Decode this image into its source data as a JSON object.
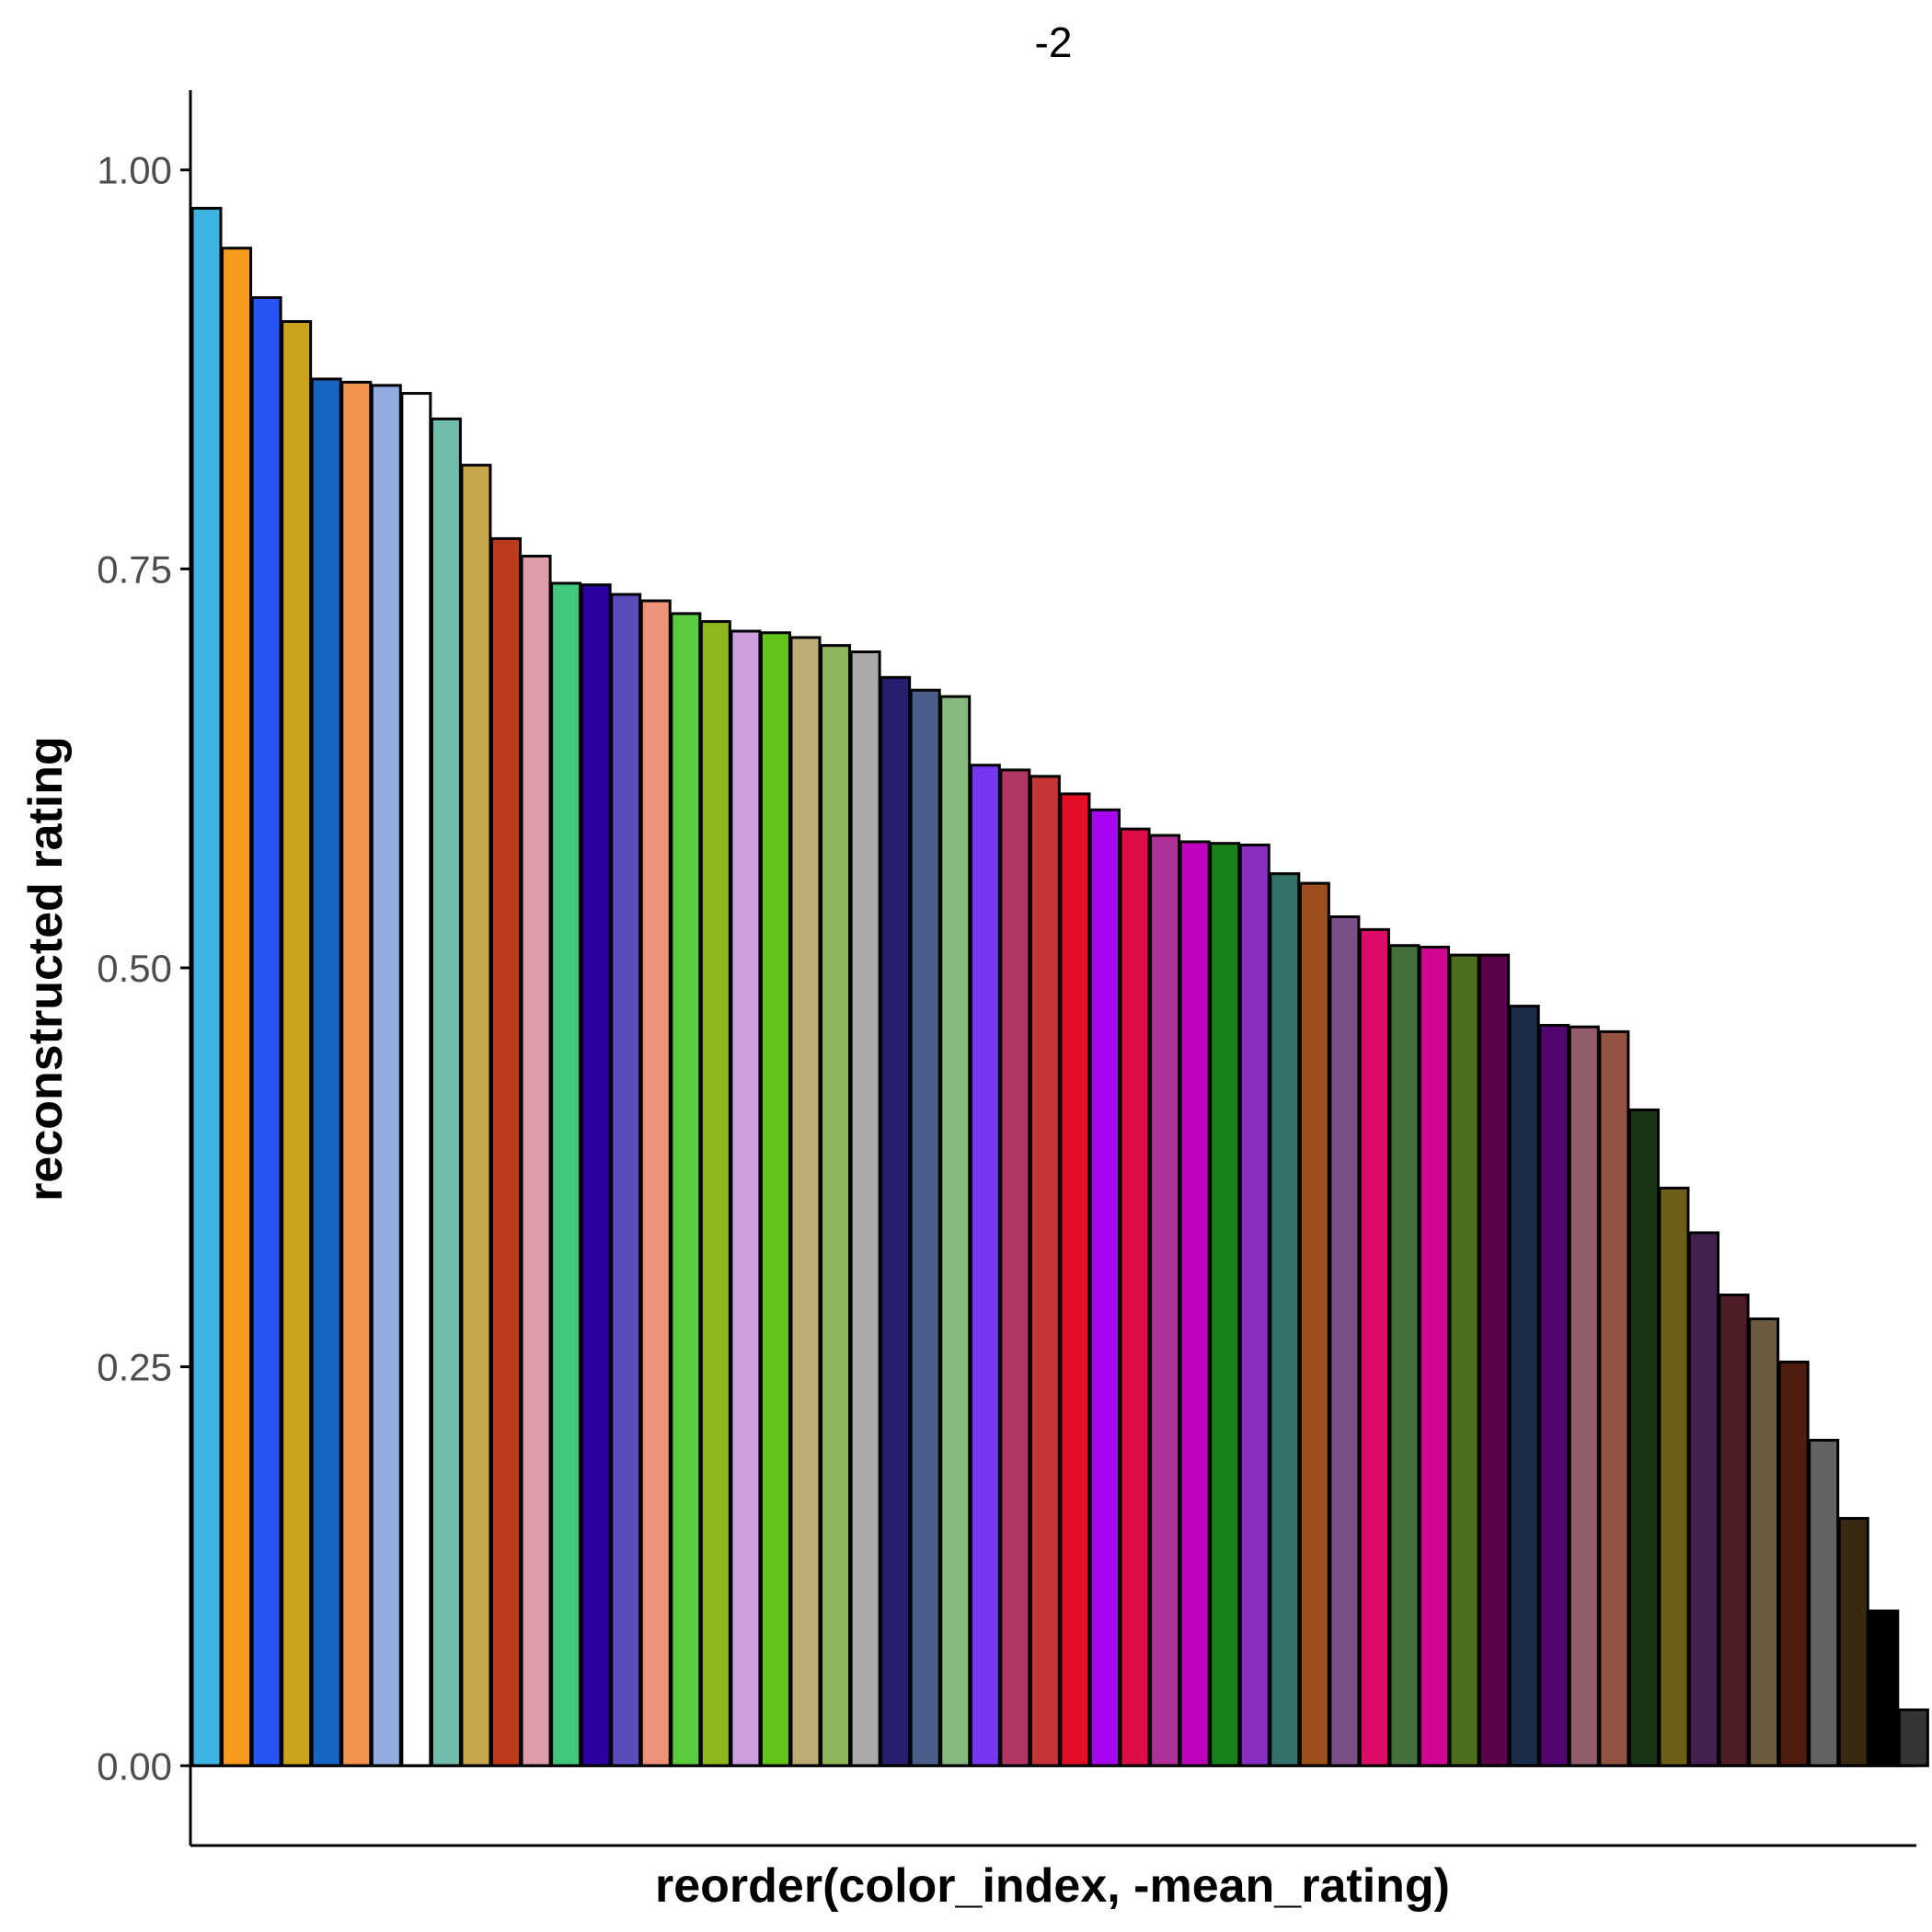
{
  "chart_data": {
    "type": "bar",
    "title": "-2",
    "xlabel": "reorder(color_index, -mean_rating)",
    "ylabel": "reconstructed rating",
    "ylim": [
      -0.05,
      1.05
    ],
    "yticks": [
      0.0,
      0.25,
      0.5,
      0.75,
      1.0
    ],
    "ytick_labels": [
      "0.00",
      "0.25",
      "0.50",
      "0.75",
      "1.00"
    ],
    "x_tick_labels_shown": false,
    "grid": false,
    "legend": "none",
    "bar_outline_color": "#000000",
    "values": [
      0.976,
      0.951,
      0.92,
      0.905,
      0.869,
      0.867,
      0.865,
      0.86,
      0.844,
      0.815,
      0.769,
      0.758,
      0.741,
      0.74,
      0.734,
      0.73,
      0.722,
      0.717,
      0.711,
      0.71,
      0.707,
      0.702,
      0.698,
      0.682,
      0.674,
      0.67,
      0.627,
      0.624,
      0.62,
      0.609,
      0.599,
      0.587,
      0.583,
      0.579,
      0.578,
      0.577,
      0.559,
      0.553,
      0.532,
      0.524,
      0.514,
      0.513,
      0.508,
      0.508,
      0.476,
      0.464,
      0.463,
      0.46,
      0.411,
      0.362,
      0.334,
      0.295,
      0.28,
      0.253,
      0.204,
      0.155,
      0.097,
      0.035
    ],
    "colors": [
      "#3cb4df",
      "#f7991c",
      "#2655f5",
      "#c8a51b",
      "#1866c4",
      "#f2944d",
      "#91acdf",
      "#ffffff",
      "#71bcab",
      "#c6a84a",
      "#bd3b1c",
      "#df9ca9",
      "#41c87d",
      "#2b00a1",
      "#594cbb",
      "#ec937a",
      "#5bca40",
      "#8fb81e",
      "#cf9ede",
      "#62c418",
      "#bcac78",
      "#8db55a",
      "#aaaaaa",
      "#261f6e",
      "#4b5e8a",
      "#85ba7d",
      "#7537f0",
      "#b13565",
      "#c73438",
      "#e50e27",
      "#a505f0",
      "#dc0d47",
      "#ae3295",
      "#bf04be",
      "#17811b",
      "#8930c0",
      "#347169",
      "#9a4f1c",
      "#7b508a",
      "#dc0c67",
      "#45703c",
      "#d20594",
      "#4d6e1d",
      "#5c014c",
      "#1b2c4a",
      "#520670",
      "#935e6b",
      "#935340",
      "#183316",
      "#6c6016",
      "#422050",
      "#4e1d25",
      "#6c5c3e",
      "#4e1d10",
      "#636363",
      "#362a11",
      "#000000",
      "#353535"
    ]
  }
}
